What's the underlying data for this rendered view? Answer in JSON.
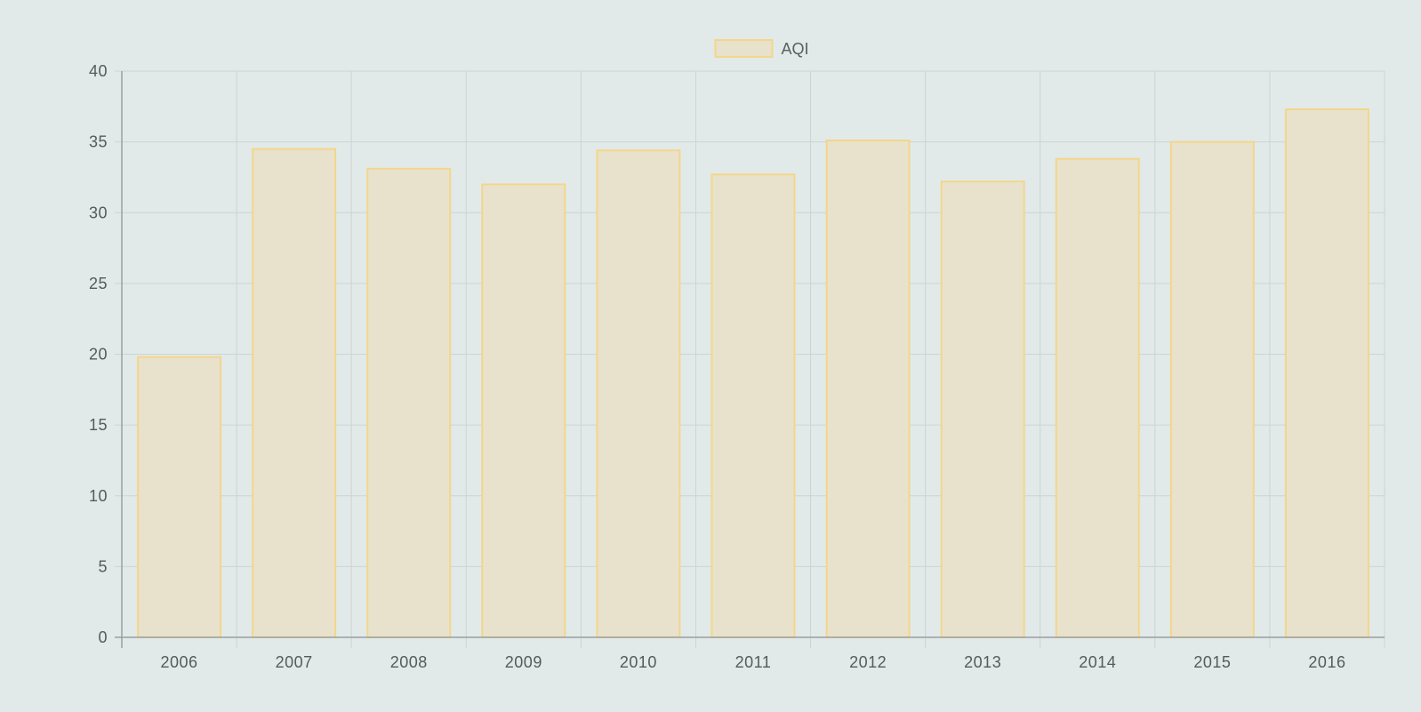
{
  "theme": {
    "background": "#e2e9e9",
    "bar_fill": "#e8e2cc",
    "bar_stroke": "#f3d68a",
    "grid": "#cdd4d4",
    "axis": "#9aa0a2",
    "text": "#555a5c"
  },
  "chart_data": {
    "type": "bar",
    "title": "",
    "xlabel": "",
    "ylabel": "",
    "legend_position": "top-center",
    "grid": true,
    "categories": [
      "2006",
      "2007",
      "2008",
      "2009",
      "2010",
      "2011",
      "2012",
      "2013",
      "2014",
      "2015",
      "2016"
    ],
    "series": [
      {
        "name": "AQI",
        "values": [
          19.8,
          34.5,
          33.1,
          32.0,
          34.4,
          32.7,
          35.1,
          32.2,
          33.8,
          35.0,
          37.3
        ]
      }
    ],
    "ylim": [
      0,
      40
    ],
    "yticks": [
      "0",
      "5",
      "10",
      "15",
      "20",
      "25",
      "30",
      "35",
      "40"
    ]
  }
}
